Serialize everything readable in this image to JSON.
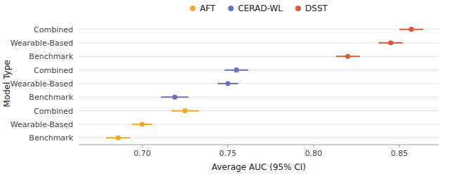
{
  "chart_data": {
    "type": "forest",
    "xlabel": "Average AUC (95% CI)",
    "ylabel": "Model Type",
    "categories": [
      "Combined",
      "Wearable-Based",
      "Benchmark",
      "Combined",
      "Wearable-Based",
      "Benchmark",
      "Combined",
      "Wearable-Based",
      "Benchmark"
    ],
    "series": [
      {
        "name": "AFT",
        "color": "#F5A623",
        "values": [
          null,
          null,
          null,
          null,
          null,
          null,
          0.725,
          0.7,
          0.686
        ],
        "ci_low": [
          null,
          null,
          null,
          null,
          null,
          null,
          0.717,
          0.694,
          0.679
        ],
        "ci_high": [
          null,
          null,
          null,
          null,
          null,
          null,
          0.733,
          0.706,
          0.693
        ]
      },
      {
        "name": "CERAD-WL",
        "color": "#6B6FBF",
        "values": [
          null,
          null,
          null,
          0.755,
          0.75,
          0.719,
          null,
          null,
          null
        ],
        "ci_low": [
          null,
          null,
          null,
          0.748,
          0.744,
          0.711,
          null,
          null,
          null
        ],
        "ci_high": [
          null,
          null,
          null,
          0.762,
          0.756,
          0.727,
          null,
          null,
          null
        ]
      },
      {
        "name": "DSST",
        "color": "#E05A3A",
        "values": [
          0.857,
          0.845,
          0.82,
          null,
          null,
          null,
          null,
          null,
          null
        ],
        "ci_low": [
          0.85,
          0.838,
          0.813,
          null,
          null,
          null,
          null,
          null,
          null
        ],
        "ci_high": [
          0.864,
          0.852,
          0.827,
          null,
          null,
          null,
          null,
          null,
          null
        ]
      }
    ],
    "xlim": [
      0.663,
      0.873
    ],
    "xticks": [
      {
        "value": 0.7,
        "label": "0.70"
      },
      {
        "value": 0.75,
        "label": "0.75"
      },
      {
        "value": 0.8,
        "label": "0.80"
      },
      {
        "value": 0.85,
        "label": "0.85"
      }
    ],
    "grid": true,
    "legend": "top"
  }
}
